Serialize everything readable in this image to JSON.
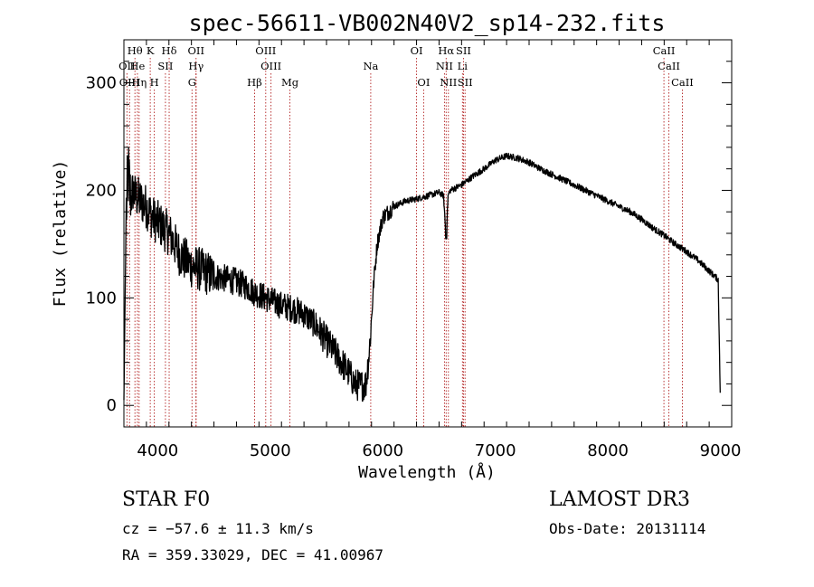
{
  "chart_data": {
    "type": "line",
    "title": "spec-56611-VB002N40V2_sp14-232.fits",
    "xlabel": "Wavelength (Å)",
    "ylabel": "Flux (relative)",
    "xlim": [
      3700,
      9100
    ],
    "ylim": [
      -20,
      340
    ],
    "xticks": [
      4000,
      5000,
      6000,
      7000,
      8000,
      9000
    ],
    "yticks": [
      0,
      100,
      200,
      300
    ],
    "xminor_step": 200,
    "yminor_step": 20,
    "series": [
      {
        "name": "flux",
        "x": [
          3700,
          3720,
          3740,
          3760,
          3780,
          3800,
          3850,
          3900,
          3950,
          4000,
          4050,
          4100,
          4150,
          4200,
          4250,
          4300,
          4350,
          4400,
          4500,
          4600,
          4700,
          4800,
          4861,
          4900,
          5000,
          5100,
          5200,
          5300,
          5400,
          5500,
          5600,
          5700,
          5750,
          5800,
          5850,
          5880,
          5900,
          5920,
          5950,
          6000,
          6100,
          6200,
          6300,
          6400,
          6500,
          6540,
          6563,
          6580,
          6600,
          6700,
          6800,
          6900,
          7000,
          7100,
          7200,
          7300,
          7400,
          7500,
          7600,
          7700,
          7800,
          7900,
          8000,
          8100,
          8200,
          8300,
          8400,
          8500,
          8600,
          8700,
          8800,
          8900,
          8950,
          8980,
          9000
        ],
        "y": [
          5,
          180,
          215,
          190,
          200,
          195,
          190,
          185,
          175,
          170,
          165,
          160,
          150,
          140,
          135,
          130,
          128,
          125,
          120,
          118,
          115,
          110,
          105,
          103,
          98,
          93,
          90,
          85,
          75,
          60,
          45,
          30,
          20,
          18,
          20,
          50,
          80,
          115,
          150,
          175,
          185,
          190,
          192,
          195,
          198,
          195,
          155,
          195,
          200,
          205,
          213,
          220,
          228,
          232,
          230,
          226,
          220,
          215,
          210,
          205,
          200,
          195,
          190,
          185,
          180,
          173,
          165,
          158,
          150,
          143,
          135,
          125,
          120,
          117,
          0
        ]
      }
    ],
    "lines": {
      "row1": [
        {
          "label": "Hθ",
          "x": 3798
        },
        {
          "label": "K",
          "x": 3934
        },
        {
          "label": "Hδ",
          "x": 4102
        },
        {
          "label": "OII",
          "x": 4341
        },
        {
          "label": "OIII",
          "x": 4960
        },
        {
          "label": "OI",
          "x": 6300
        },
        {
          "label": "Hα",
          "x": 6563
        },
        {
          "label": "SII",
          "x": 6717
        },
        {
          "label": "CaII",
          "x": 8498
        }
      ],
      "row2": [
        {
          "label": "OII",
          "x": 3727
        },
        {
          "label": "He",
          "x": 3820
        },
        {
          "label": "SII",
          "x": 4069
        },
        {
          "label": "Hγ",
          "x": 4341
        },
        {
          "label": "OIII",
          "x": 5007
        },
        {
          "label": "Na",
          "x": 5893
        },
        {
          "label": "NII",
          "x": 6548
        },
        {
          "label": "Li",
          "x": 6708
        },
        {
          "label": "CaII",
          "x": 8542
        }
      ],
      "row3": [
        {
          "label": "OIII",
          "x": 3750
        },
        {
          "label": "Hη",
          "x": 3835
        },
        {
          "label": "H",
          "x": 3970
        },
        {
          "label": "G",
          "x": 4305
        },
        {
          "label": "Hβ",
          "x": 4861
        },
        {
          "label": "Mg",
          "x": 5175
        },
        {
          "label": "OI",
          "x": 6363
        },
        {
          "label": "NII",
          "x": 6583
        },
        {
          "label": "SII",
          "x": 6731
        },
        {
          "label": "CaII",
          "x": 8662
        }
      ]
    }
  },
  "info": {
    "class_line": "STAR    F0",
    "survey": "LAMOST DR3",
    "cz": "cz = −57.6 ± 11.3 km/s",
    "obs_date": "Obs-Date: 20131114",
    "coords": "RA = 359.33029, DEC =  41.00967"
  },
  "colors": {
    "line_marker": "#b22222",
    "spectrum": "#000000",
    "axes": "#000000"
  }
}
